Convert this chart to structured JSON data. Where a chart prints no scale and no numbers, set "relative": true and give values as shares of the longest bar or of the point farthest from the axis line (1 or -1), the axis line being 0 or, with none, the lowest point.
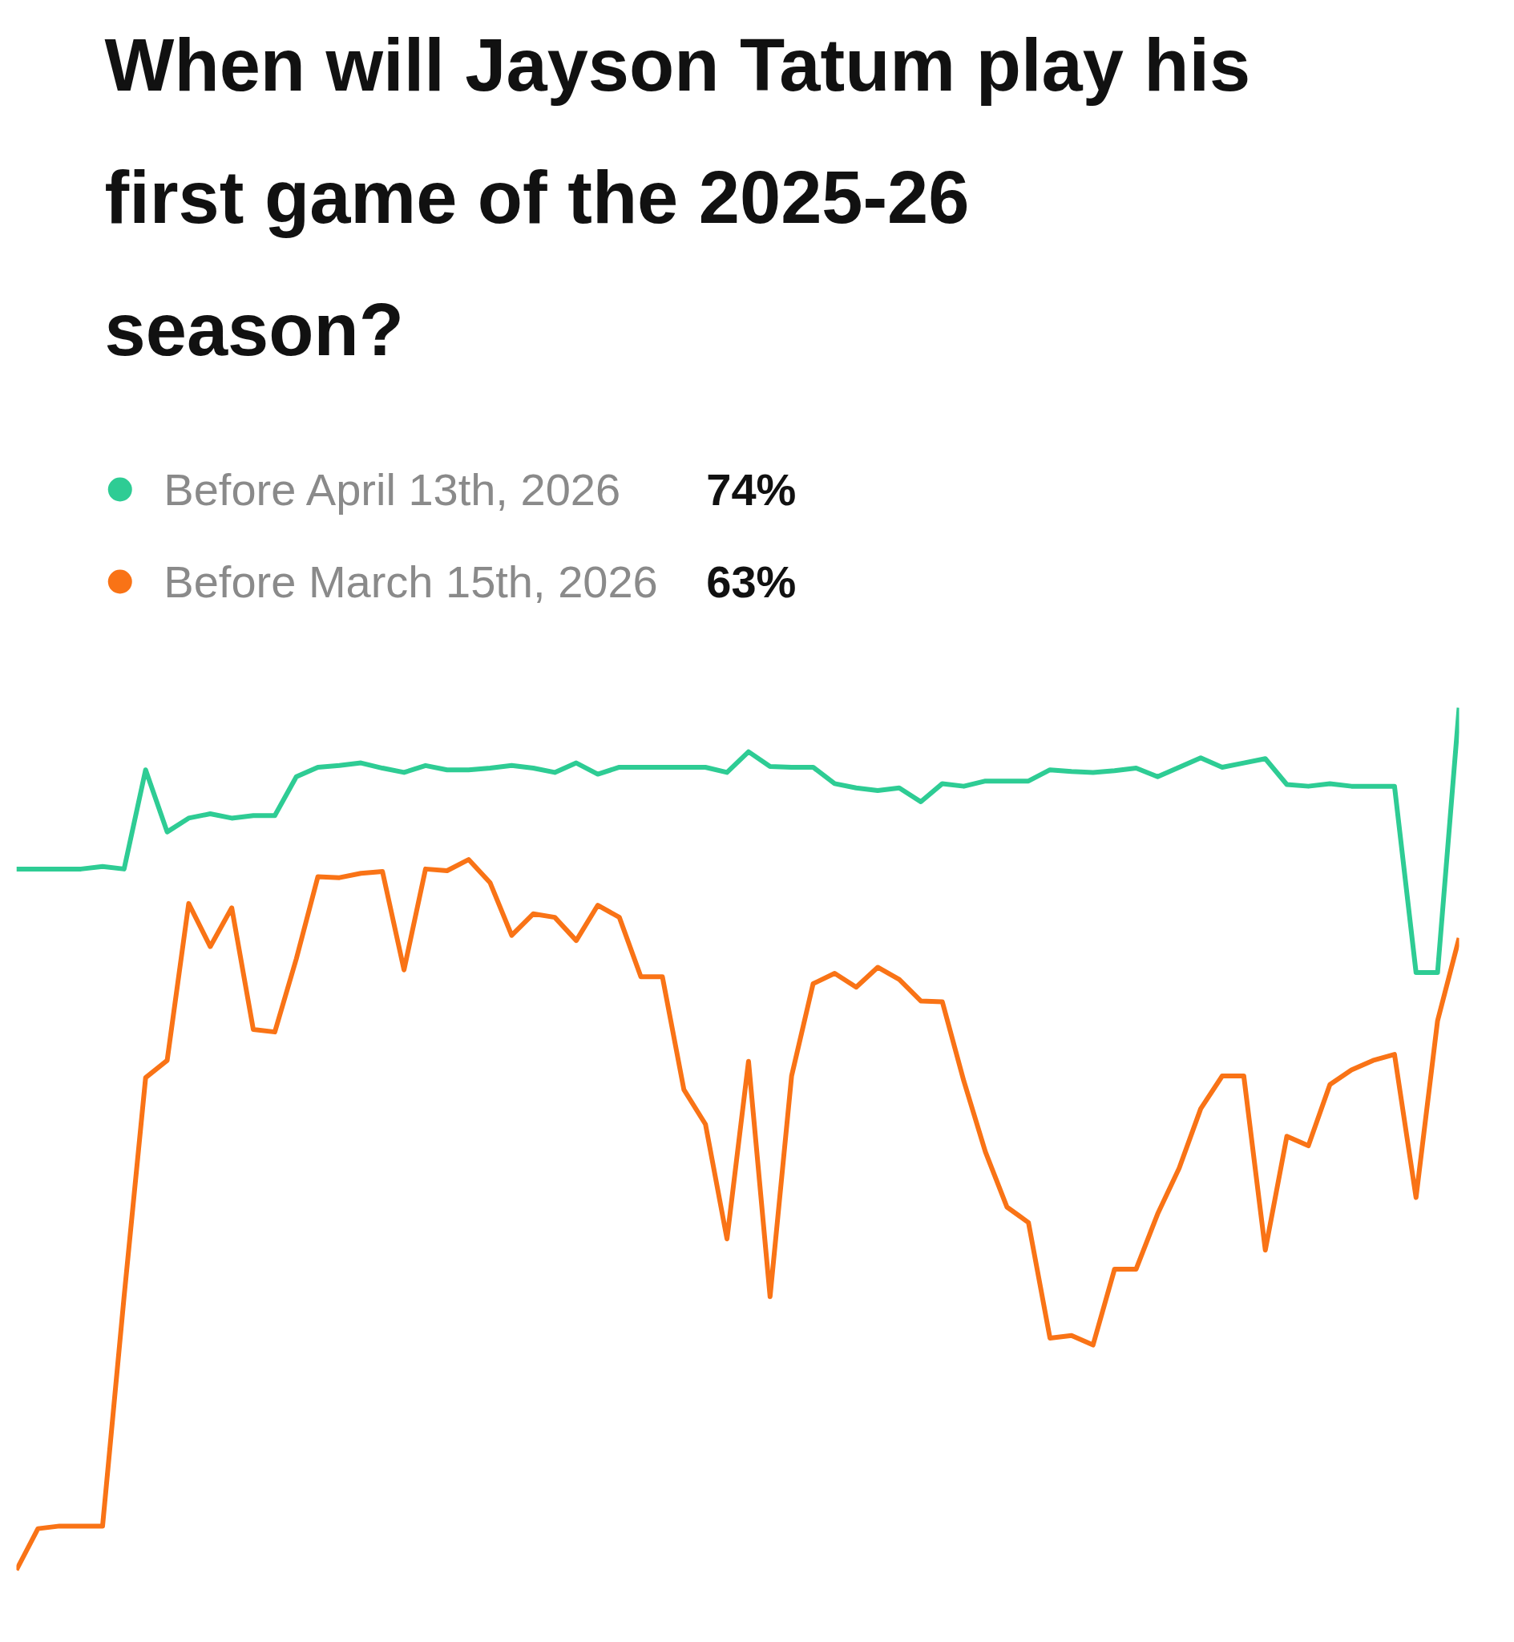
{
  "chart_data": {
    "type": "line",
    "title": "When will Jayson Tatum play his first game of the 2025-26 season?",
    "relative": true,
    "tick_labels": false,
    "grid": false,
    "legend": "top left",
    "annotations": [
      "74%",
      "63%"
    ],
    "categories": [
      null,
      null,
      null,
      null,
      null,
      null,
      null,
      null,
      null,
      null,
      null,
      null,
      null,
      null,
      null,
      null,
      null,
      null,
      null,
      null,
      null,
      null,
      null,
      null,
      null,
      null,
      null,
      null,
      null,
      null,
      null,
      null,
      null,
      null,
      null,
      null,
      null,
      null,
      null,
      null,
      null,
      null,
      null,
      null,
      null,
      null,
      null,
      null,
      null,
      null,
      null,
      null,
      null,
      null,
      null,
      null,
      null,
      null,
      null,
      null,
      null,
      null,
      null,
      null,
      null,
      null,
      null,
      null
    ],
    "series": [
      {
        "name": "Before April 13th, 2026",
        "color": "#2ecc94",
        "values": [
          0.813,
          0.813,
          0.813,
          0.813,
          0.816,
          0.813,
          0.928,
          0.856,
          0.872,
          0.877,
          0.872,
          0.875,
          0.875,
          0.92,
          0.931,
          0.933,
          0.936,
          0.93,
          0.925,
          0.933,
          0.928,
          0.928,
          0.93,
          0.933,
          0.93,
          0.925,
          0.936,
          0.923,
          0.931,
          0.931,
          0.931,
          0.931,
          0.931,
          0.925,
          0.949,
          0.932,
          0.931,
          0.931,
          0.912,
          0.907,
          0.904,
          0.907,
          0.891,
          0.912,
          0.909,
          0.915,
          0.915,
          0.915,
          0.928,
          0.926,
          0.925,
          0.927,
          0.93,
          0.92,
          0.931,
          0.942,
          0.931,
          0.936,
          0.941,
          0.911,
          0.909,
          0.912,
          0.909,
          0.909,
          0.909,
          0.693,
          0.693,
          1.0
        ]
      },
      {
        "name": "Before March 15th, 2026",
        "color": "#f97316",
        "values": [
          0.0,
          0.048,
          0.051,
          0.051,
          0.051,
          0.317,
          0.571,
          0.591,
          0.773,
          0.723,
          0.768,
          0.627,
          0.624,
          0.709,
          0.804,
          0.803,
          0.808,
          0.81,
          0.696,
          0.813,
          0.811,
          0.824,
          0.797,
          0.736,
          0.761,
          0.757,
          0.73,
          0.771,
          0.757,
          0.688,
          0.688,
          0.557,
          0.517,
          0.384,
          0.59,
          0.317,
          0.573,
          0.68,
          0.692,
          0.676,
          0.699,
          0.685,
          0.66,
          0.659,
          0.567,
          0.485,
          0.421,
          0.403,
          0.269,
          0.272,
          0.261,
          0.349,
          0.349,
          0.413,
          0.466,
          0.535,
          0.573,
          0.573,
          0.371,
          0.503,
          0.492,
          0.563,
          0.58,
          0.591,
          0.598,
          0.432,
          0.637,
          0.733
        ]
      }
    ]
  }
}
